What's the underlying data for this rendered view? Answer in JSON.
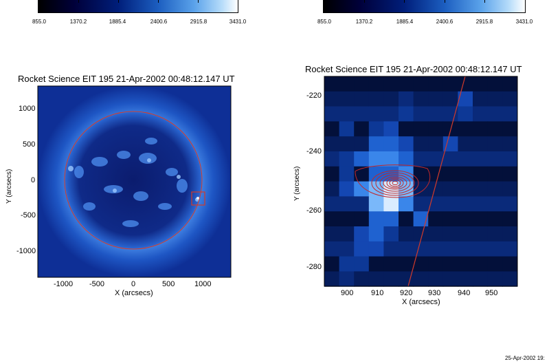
{
  "colorbar_left": {
    "ticks": [
      "855.0",
      "1370.2",
      "1885.4",
      "2400.6",
      "2915.8",
      "3431.0"
    ]
  },
  "colorbar_right": {
    "ticks": [
      "855.0",
      "1370.2",
      "1885.4",
      "2400.6",
      "2915.8",
      "3431.0"
    ]
  },
  "panel_left": {
    "title": "Rocket Science EIT 195 21-Apr-2002 00:48:12.147 UT",
    "xlabel": "X (arcsecs)",
    "ylabel": "Y (arcsecs)",
    "xticks": [
      "-1000",
      "-500",
      "0",
      "500",
      "1000"
    ],
    "yticks": [
      "1000",
      "500",
      "0",
      "-500",
      "-1000"
    ]
  },
  "panel_right": {
    "title": "Rocket Science EIT 195 21-Apr-2002 00:48:12.147 UT",
    "xlabel": "X (arcsecs)",
    "ylabel": "Y (arcsecs)",
    "xticks": [
      "900",
      "910",
      "920",
      "930",
      "940",
      "950"
    ],
    "yticks": [
      "-220",
      "-240",
      "-260",
      "-280"
    ]
  },
  "timestamp": "25-Apr-2002 19:",
  "colors": {
    "limb": "#d23a2a",
    "contour": "#c0282a",
    "accent": "#1a4fc2"
  }
}
